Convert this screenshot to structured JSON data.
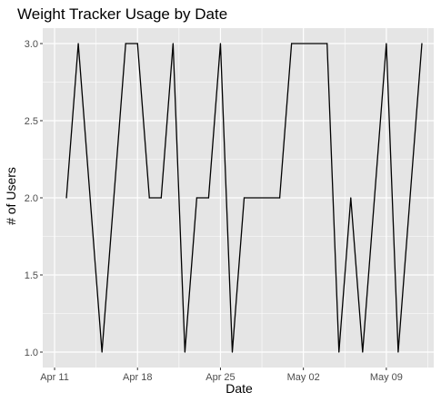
{
  "chart_data": {
    "type": "line",
    "title": "Weight Tracker Usage by Date",
    "xlabel": "Date",
    "ylabel": "# of Users",
    "x_ticks": [
      {
        "date": "2023-04-11",
        "label": "Apr 11"
      },
      {
        "date": "2023-04-18",
        "label": "Apr 18"
      },
      {
        "date": "2023-04-25",
        "label": "Apr 25"
      },
      {
        "date": "2023-05-02",
        "label": "May 02"
      },
      {
        "date": "2023-05-09",
        "label": "May 09"
      }
    ],
    "y_ticks": [
      {
        "value": 1.0,
        "label": "1.0"
      },
      {
        "value": 1.5,
        "label": "1.5"
      },
      {
        "value": 2.0,
        "label": "2.0"
      },
      {
        "value": 2.5,
        "label": "2.5"
      },
      {
        "value": 3.0,
        "label": "3.0"
      }
    ],
    "xlim": [
      "2023-04-10",
      "2023-05-13"
    ],
    "ylim": [
      0.9,
      3.1
    ],
    "grid": true,
    "legend": "none",
    "colors": {
      "panel_background": "#e5e5e5",
      "grid_line": "#ffffff",
      "series_line": "#000000",
      "tick_label": "#4d4d4d",
      "tick_mark": "#333333"
    },
    "series": [
      {
        "points": [
          {
            "x": "2023-04-12",
            "y": 2
          },
          {
            "x": "2023-04-13",
            "y": 3
          },
          {
            "x": "2023-04-15",
            "y": 1
          },
          {
            "x": "2023-04-17",
            "y": 3
          },
          {
            "x": "2023-04-18",
            "y": 3
          },
          {
            "x": "2023-04-19",
            "y": 2
          },
          {
            "x": "2023-04-20",
            "y": 2
          },
          {
            "x": "2023-04-21",
            "y": 3
          },
          {
            "x": "2023-04-22",
            "y": 1
          },
          {
            "x": "2023-04-23",
            "y": 2
          },
          {
            "x": "2023-04-24",
            "y": 2
          },
          {
            "x": "2023-04-25",
            "y": 3
          },
          {
            "x": "2023-04-26",
            "y": 1
          },
          {
            "x": "2023-04-27",
            "y": 2
          },
          {
            "x": "2023-04-30",
            "y": 2
          },
          {
            "x": "2023-05-01",
            "y": 3
          },
          {
            "x": "2023-05-04",
            "y": 3
          },
          {
            "x": "2023-05-05",
            "y": 1
          },
          {
            "x": "2023-05-06",
            "y": 2
          },
          {
            "x": "2023-05-07",
            "y": 1
          },
          {
            "x": "2023-05-09",
            "y": 3
          },
          {
            "x": "2023-05-10",
            "y": 1
          },
          {
            "x": "2023-05-12",
            "y": 3
          }
        ]
      }
    ]
  }
}
